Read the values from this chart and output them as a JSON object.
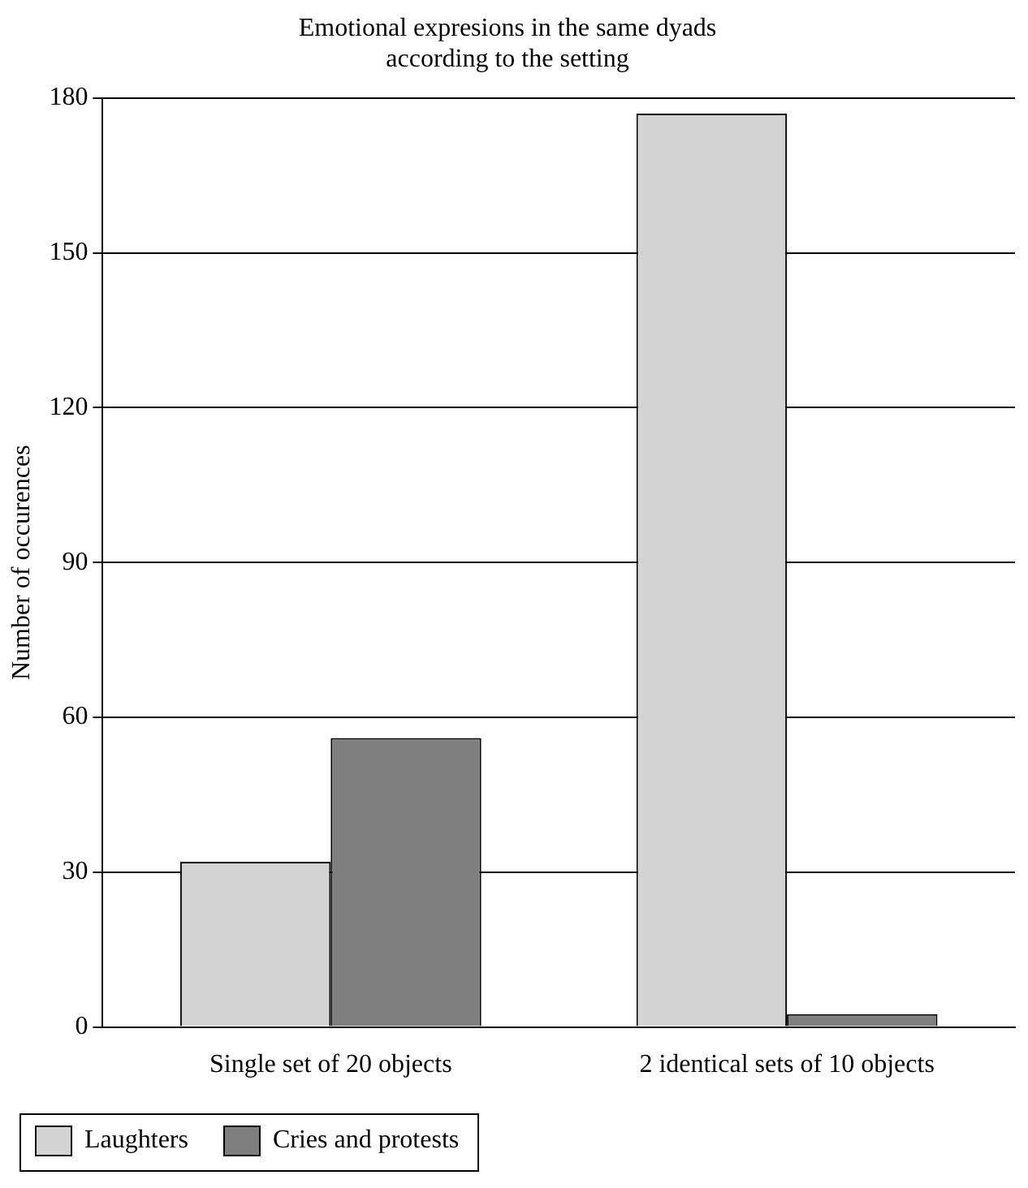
{
  "chart_data": {
    "type": "bar",
    "title": "Emotional expresions in the same dyads\naccording to the setting",
    "ylabel": "Number of occurences",
    "categories": [
      "Single set of 20 objects",
      "2 identical sets of 10 objects"
    ],
    "series": [
      {
        "name": "Laughters",
        "color": "#d3d3d3",
        "values": [
          32,
          177
        ]
      },
      {
        "name": "Cries and protests",
        "color": "#7f7f7f",
        "values": [
          56,
          2.5
        ]
      }
    ],
    "ylim": [
      0,
      180
    ],
    "yticks": [
      0,
      30,
      60,
      90,
      120,
      150,
      180
    ],
    "grid": "y",
    "legend": "bottom"
  }
}
